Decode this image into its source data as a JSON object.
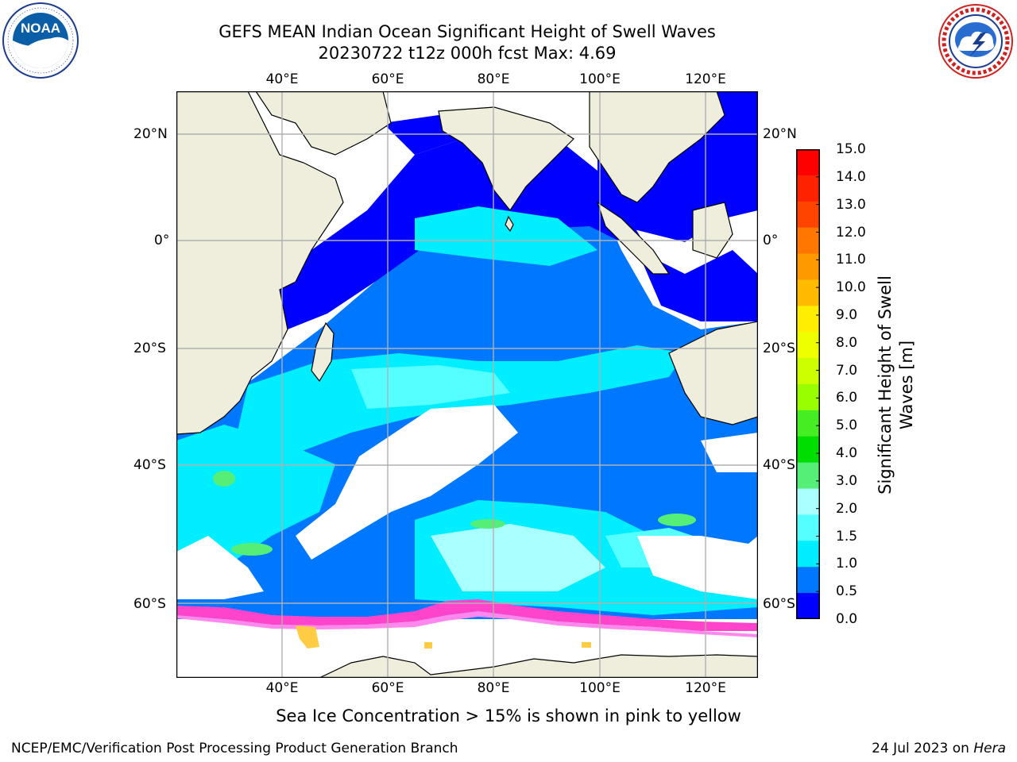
{
  "title_line1": "GEFS MEAN Indian Ocean Significant Height of Swell Waves",
  "title_line2": "20230722 t12z 000h fcst   Max: 4.69",
  "logos": {
    "left": {
      "name": "NOAA",
      "text": "NOAA",
      "ring_text": "NATIONAL OCEANIC AND ATMOSPHERIC ADMINISTRATION · U.S. DEPARTMENT OF COMMERCE"
    },
    "right": {
      "name": "National Weather Service",
      "ring_text": "NATIONAL WEATHER SERVICE"
    }
  },
  "map": {
    "longitude_ticks": [
      "40°E",
      "60°E",
      "80°E",
      "100°E",
      "120°E"
    ],
    "latitude_ticks": [
      "20°N",
      "0°",
      "20°S",
      "40°S",
      "60°S"
    ],
    "land_color": "#efeedd",
    "sea_ice_colors": [
      "#ff44cc",
      "#ff88ee",
      "#ffcc44",
      "#ffee66"
    ],
    "grid": true
  },
  "colorbar": {
    "title": "Significant Height of Swell Waves [m]",
    "labels": [
      "15.0",
      "14.0",
      "13.0",
      "12.0",
      "11.0",
      "10.0",
      "9.0",
      "8.0",
      "7.0",
      "6.0",
      "5.0",
      "4.0",
      "3.0",
      "2.0",
      "1.5",
      "1.0",
      "0.5",
      "0.0"
    ],
    "colors": [
      "#ff0000",
      "#ff2200",
      "#ff4400",
      "#ff7700",
      "#ff9900",
      "#ffbb00",
      "#ffee00",
      "#eeff00",
      "#ccff00",
      "#99ff00",
      "#44ee22",
      "#00dd00",
      "#55ee77",
      "#aaffff",
      "#55ffff",
      "#00eeff",
      "#0077ff",
      "#0000ff"
    ]
  },
  "footnote": "Sea Ice Concentration > 15% is shown in pink to yellow",
  "footer_left": "NCEP/EMC/Verification Post Processing Product Generation Branch",
  "footer_right_prefix": "24 Jul 2023 on ",
  "footer_right_host": "Hera"
}
